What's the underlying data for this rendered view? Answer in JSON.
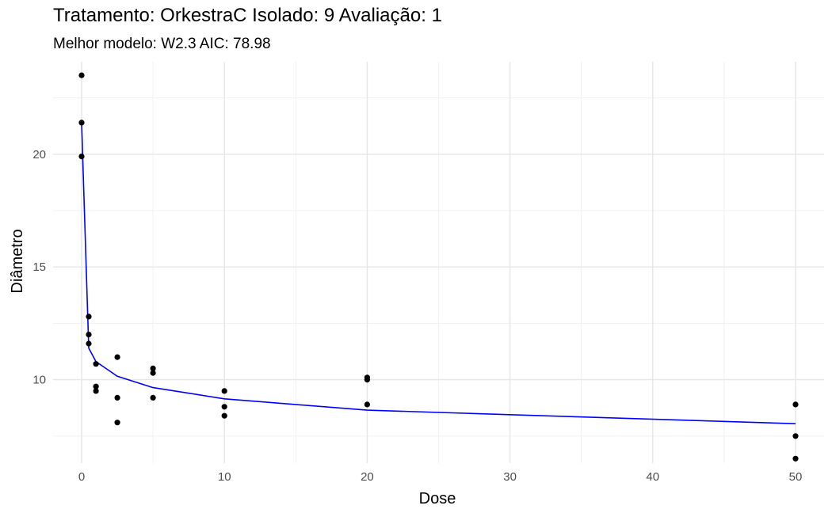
{
  "chart_data": {
    "type": "scatter",
    "title": "Tratamento: OrkestraC Isolado: 9 Avaliação: 1",
    "subtitle": "Melhor modelo: W2.3 AIC: 78.98",
    "xlabel": "Dose",
    "ylabel": "Diâmetro",
    "xlim": [
      -2,
      52
    ],
    "ylim": [
      6.3,
      24.1
    ],
    "x_ticks": [
      0,
      10,
      20,
      30,
      40,
      50
    ],
    "y_ticks": [
      10,
      15,
      20
    ],
    "grid": true,
    "points": {
      "x": [
        0,
        0,
        0,
        0.5,
        0.5,
        0.5,
        1,
        1,
        1,
        2.5,
        2.5,
        2.5,
        5,
        5,
        5,
        10,
        10,
        10,
        20,
        20,
        20,
        50,
        50,
        50
      ],
      "y": [
        23.5,
        21.4,
        19.9,
        12.8,
        12.0,
        11.6,
        10.7,
        9.7,
        9.5,
        11.0,
        9.2,
        8.1,
        10.5,
        10.3,
        9.2,
        9.5,
        8.8,
        8.4,
        10.1,
        10.0,
        8.9,
        8.9,
        7.5,
        6.5
      ]
    },
    "series": [
      {
        "name": "",
        "color": "#0000ff",
        "x": [
          0,
          0.5,
          1,
          2.5,
          5,
          10,
          20,
          50
        ],
        "y": [
          21.4,
          11.4,
          10.8,
          10.15,
          9.65,
          9.15,
          8.65,
          8.05
        ]
      }
    ],
    "point_color": "#000000"
  }
}
